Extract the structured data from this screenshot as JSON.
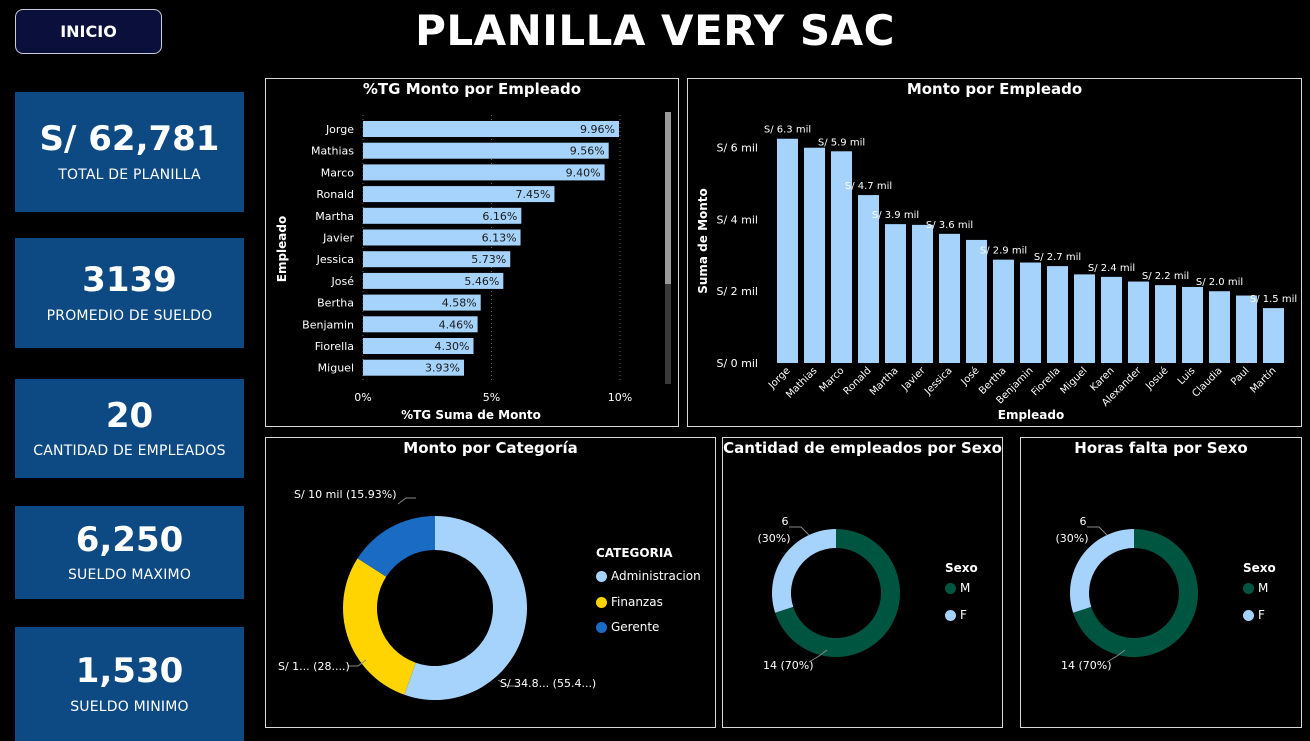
{
  "nav": {
    "inicio_label": "INICIO"
  },
  "header": {
    "title": "PLANILLA VERY SAC"
  },
  "kpis": [
    {
      "value": "S/ 62,781",
      "label": "TOTAL DE PLANILLA"
    },
    {
      "value": "3139",
      "label": "PROMEDIO DE SUELDO"
    },
    {
      "value": "20",
      "label": "CANTIDAD DE EMPLEADOS"
    },
    {
      "value": "6,250",
      "label": "SUELDO MAXIMO"
    },
    {
      "value": "1,530",
      "label": "SUELDO MINIMO"
    }
  ],
  "colors": {
    "light_blue": "#a6d3fb",
    "kpi_blue": "#0d4a84",
    "yellow": "#ffd400",
    "mid_blue": "#1a6bc4",
    "dark_green": "#005541"
  },
  "chart_data": [
    {
      "id": "pct-por-empleado",
      "type": "bar",
      "orientation": "horizontal",
      "title": "%TG Monto por Empleado",
      "xlabel": "%TG Suma de Monto",
      "ylabel": "Empleado",
      "categories": [
        "Jorge",
        "Mathias",
        "Marco",
        "Ronald",
        "Martha",
        "Javier",
        "Jessica",
        "José",
        "Bertha",
        "Benjamin",
        "Fiorella",
        "Miguel"
      ],
      "values": [
        9.96,
        9.56,
        9.4,
        7.45,
        6.16,
        6.13,
        5.73,
        5.46,
        4.58,
        4.46,
        4.3,
        3.93
      ],
      "labels": [
        "9.96%",
        "9.56%",
        "9.40%",
        "7.45%",
        "6.16%",
        "6.13%",
        "5.73%",
        "5.46%",
        "4.58%",
        "4.46%",
        "4.30%",
        "3.93%"
      ],
      "xticks": [
        "0%",
        "5%",
        "10%"
      ],
      "xlim": [
        0,
        10
      ]
    },
    {
      "id": "monto-por-empleado",
      "type": "bar",
      "title": "Monto por Empleado",
      "xlabel": "Empleado",
      "ylabel": "Suma de Monto",
      "categories": [
        "Jorge",
        "Mathias",
        "Marco",
        "Ronald",
        "Martha",
        "Javier",
        "Jessica",
        "José",
        "Bertha",
        "Benjamin",
        "Fiorella",
        "Miguel",
        "Karen",
        "Alexander",
        "Josué",
        "Luis",
        "Claudia",
        "Paul",
        "Martín"
      ],
      "values": [
        6.25,
        6.0,
        5.9,
        4.68,
        3.87,
        3.85,
        3.6,
        3.43,
        2.88,
        2.8,
        2.7,
        2.47,
        2.4,
        2.27,
        2.17,
        2.12,
        2.0,
        1.88,
        1.53
      ],
      "labels": [
        "S/ 6.3 mil",
        "",
        "S/ 5.9 mil",
        "S/ 4.7 mil",
        "S/ 3.9 mil",
        "",
        "S/ 3.6 mil",
        "",
        "S/ 2.9 mil",
        "",
        "S/ 2.7 mil",
        "",
        "S/ 2.4 mil",
        "",
        "S/ 2.2 mil",
        "",
        "S/ 2.0 mil",
        "",
        "S/ 1.5 mil"
      ],
      "yticks": [
        "S/ 0 mil",
        "S/ 2 mil",
        "S/ 4 mil",
        "S/ 6 mil"
      ],
      "ylim": [
        0,
        6.8
      ]
    },
    {
      "id": "monto-por-categoria",
      "type": "pie",
      "title": "Monto por Categoría",
      "legend_title": "CATEGORIA",
      "categories": [
        "Administracion",
        "Finanzas",
        "Gerente"
      ],
      "values": [
        55.4,
        28.67,
        15.93
      ],
      "slice_labels": [
        "S/ 34.8... (55.4...)",
        "S/ 1... (28....)",
        "S/ 10 mil (15.93%)"
      ],
      "colors": [
        "#a6d3fb",
        "#ffd400",
        "#1a6bc4"
      ]
    },
    {
      "id": "cantidad-por-sexo",
      "type": "pie",
      "title": "Cantidad de empleados por Sexo",
      "legend_title": "Sexo",
      "categories": [
        "M",
        "F"
      ],
      "values": [
        14,
        6
      ],
      "slice_labels": [
        "14 (70%)",
        "6|(30%)"
      ],
      "colors": [
        "#005541",
        "#a6d3fb"
      ]
    },
    {
      "id": "horas-falta-por-sexo",
      "type": "pie",
      "title": "Horas falta por Sexo",
      "legend_title": "Sexo",
      "categories": [
        "M",
        "F"
      ],
      "values": [
        14,
        6
      ],
      "slice_labels": [
        "14 (70%)",
        "6|(30%)"
      ],
      "colors": [
        "#005541",
        "#a6d3fb"
      ]
    }
  ]
}
